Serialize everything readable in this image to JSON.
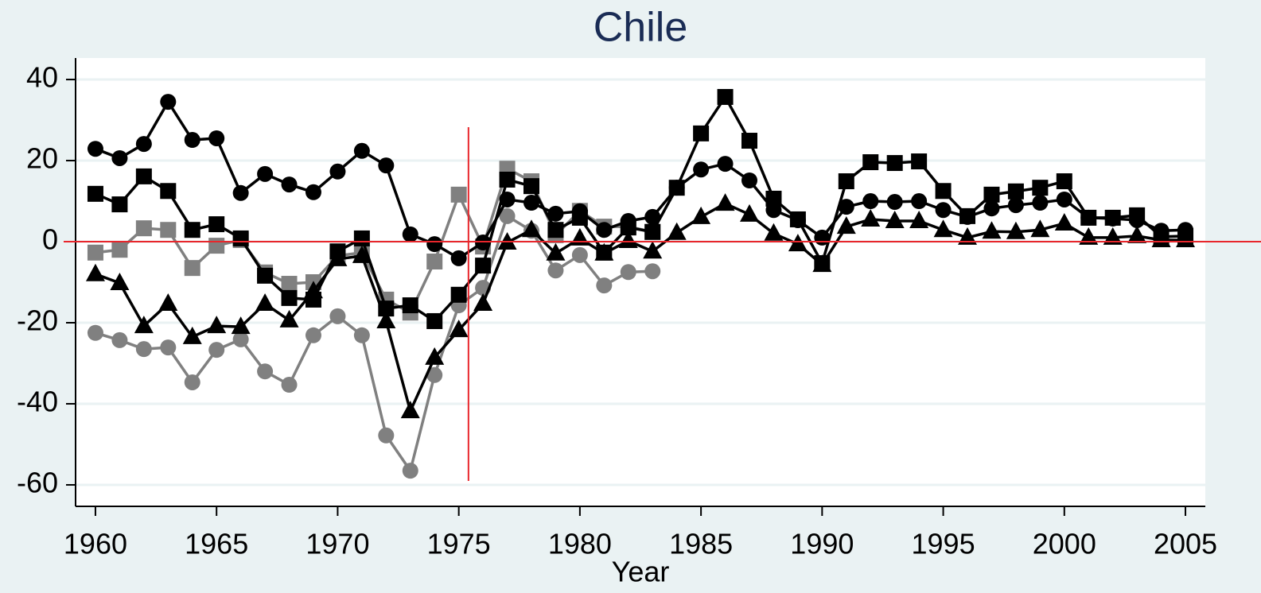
{
  "chart_data": {
    "type": "line",
    "title": "Chile",
    "x_label": "Year",
    "x": [
      1960,
      1961,
      1962,
      1963,
      1964,
      1965,
      1966,
      1967,
      1968,
      1969,
      1970,
      1971,
      1972,
      1973,
      1974,
      1975,
      1976,
      1977,
      1978,
      1979,
      1980,
      1981,
      1982,
      1983,
      1984,
      1985,
      1986,
      1987,
      1988,
      1989,
      1990,
      1991,
      1992,
      1993,
      1994,
      1995,
      1996,
      1997,
      1998,
      1999,
      2000,
      2001,
      2002,
      2003,
      2004,
      2005
    ],
    "series": [
      {
        "color": "#808080",
        "marker": "square",
        "values": [
          -2.7,
          -2.0,
          3.3,
          2.9,
          -6.5,
          -1.0,
          0.4,
          -7.6,
          -10.4,
          -10.0,
          -3.5,
          -2.7,
          -14.3,
          -17.5,
          -4.9,
          11.6,
          -1.2,
          18.0,
          14.9,
          1.6,
          7.6,
          3.7,
          3.7,
          2.4,
          null,
          null,
          null,
          null,
          null,
          null,
          null,
          null,
          null,
          null,
          null,
          null,
          null,
          null,
          null,
          null,
          null,
          null,
          null,
          null,
          null,
          null
        ]
      },
      {
        "color": "#808080",
        "marker": "circle",
        "values": [
          -22.5,
          -24.3,
          -26.5,
          -26.1,
          -34.7,
          -26.7,
          -24.1,
          -32.0,
          -35.3,
          -23.1,
          -18.4,
          -23.1,
          -47.8,
          -56.5,
          -32.9,
          -15.7,
          -11.4,
          6.3,
          2.7,
          -7.1,
          -3.3,
          -10.8,
          -7.5,
          -7.3,
          null,
          null,
          null,
          null,
          null,
          null,
          null,
          null,
          null,
          null,
          null,
          null,
          null,
          null,
          null,
          null,
          null,
          null,
          null,
          null,
          null,
          null
        ]
      },
      {
        "color": "#000000",
        "marker": "circle",
        "values": [
          22.9,
          20.6,
          24.1,
          34.5,
          25.1,
          25.5,
          12.0,
          16.7,
          14.1,
          12.2,
          17.3,
          22.4,
          18.8,
          1.8,
          -0.6,
          -4.1,
          -0.2,
          10.4,
          9.6,
          6.9,
          7.5,
          2.9,
          5.1,
          6.1,
          13.3,
          17.8,
          19.2,
          15.1,
          7.8,
          5.3,
          1.0,
          8.6,
          10.0,
          9.8,
          10.0,
          7.8,
          6.1,
          8.2,
          9.0,
          9.6,
          10.4,
          5.9,
          5.7,
          5.3,
          2.7,
          2.9
        ]
      },
      {
        "color": "#000000",
        "marker": "square",
        "values": [
          11.8,
          9.2,
          16.1,
          12.5,
          2.9,
          4.3,
          0.8,
          -8.4,
          -13.9,
          -14.3,
          -2.4,
          0.8,
          -16.5,
          -15.7,
          -19.6,
          -13.1,
          -5.9,
          15.3,
          13.7,
          2.9,
          5.9,
          -2.7,
          3.5,
          2.4,
          13.3,
          26.7,
          35.7,
          24.9,
          10.6,
          5.5,
          -5.3,
          14.9,
          19.6,
          19.4,
          19.8,
          12.5,
          6.3,
          11.6,
          12.4,
          13.3,
          14.9,
          5.9,
          5.9,
          6.5,
          1.2,
          1.4
        ]
      },
      {
        "color": "#000000",
        "marker": "triangle",
        "values": [
          -8.0,
          -10.2,
          -20.8,
          -15.3,
          -23.5,
          -20.8,
          -21.0,
          -15.3,
          -19.4,
          -12.2,
          -4.3,
          -3.5,
          -19.6,
          -41.8,
          -28.6,
          -21.8,
          -15.3,
          -0.2,
          2.9,
          -2.9,
          0.8,
          -2.9,
          0.2,
          -2.4,
          2.2,
          6.1,
          9.4,
          6.7,
          2.0,
          -0.6,
          -5.7,
          3.7,
          5.5,
          5.1,
          5.1,
          2.9,
          1.0,
          2.5,
          2.4,
          2.9,
          4.5,
          1.0,
          1.0,
          1.4,
          0.4,
          0.4
        ]
      }
    ],
    "xlim": [
      1959.18,
      2005.82
    ],
    "ylim": [
      -65.3,
      45.3
    ],
    "xticks": [
      1960,
      1965,
      1970,
      1975,
      1980,
      1985,
      1990,
      1995,
      2000,
      2005
    ],
    "yticks": [
      40,
      20,
      0,
      -20,
      -40,
      -60
    ],
    "grid": true,
    "reference_lines": {
      "x": 1975.4,
      "y": 0,
      "color": "#e8262b"
    }
  }
}
